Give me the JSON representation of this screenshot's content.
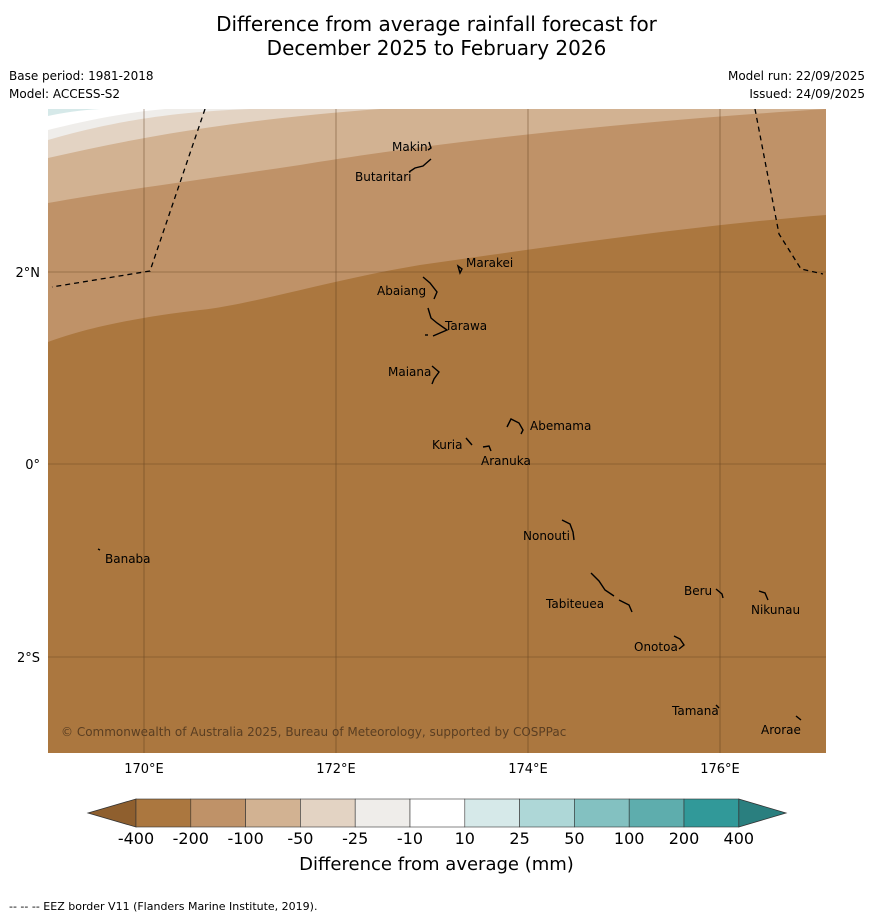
{
  "title": {
    "line1": "Difference from average rainfall forecast for",
    "line2": "December 2025 to February 2026"
  },
  "meta": {
    "base_period": "Base period: 1981-2018",
    "model": "Model: ACCESS-S2",
    "model_run": "Model run: 22/09/2025",
    "issued": "Issued: 24/09/2025"
  },
  "map": {
    "copyright": "© Commonwealth of Australia 2025, Bureau of Meteorology, supported by COSPPac",
    "lon_ticks": [
      "170°E",
      "172°E",
      "174°E",
      "176°E"
    ],
    "lat_ticks": [
      "2°N",
      "0°",
      "2°S"
    ],
    "islands": [
      {
        "name": "Makin"
      },
      {
        "name": "Butaritari"
      },
      {
        "name": "Marakei"
      },
      {
        "name": "Abaiang"
      },
      {
        "name": "Tarawa"
      },
      {
        "name": "Maiana"
      },
      {
        "name": "Abemama"
      },
      {
        "name": "Kuria"
      },
      {
        "name": "Aranuka"
      },
      {
        "name": "Nonouti"
      },
      {
        "name": "Banaba"
      },
      {
        "name": "Beru"
      },
      {
        "name": "Tabiteuea"
      },
      {
        "name": "Nikunau"
      },
      {
        "name": "Onotoa"
      },
      {
        "name": "Tamana"
      },
      {
        "name": "Arorae"
      }
    ],
    "eez_border_style": "dashed"
  },
  "colorbar": {
    "title": "Difference from average (mm)",
    "ticks": [
      "-400",
      "-200",
      "-100",
      "-50",
      "-25",
      "-10",
      "10",
      "25",
      "50",
      "100",
      "200",
      "400"
    ],
    "colors": [
      "#ab773f",
      "#bf9268",
      "#d2b292",
      "#e3d3c3",
      "#efedea",
      "#ffffff",
      "#d6e9e9",
      "#aed7d7",
      "#83c1c1",
      "#5eadad",
      "#319999"
    ],
    "extend_low_color": "#8f5f2e",
    "extend_high_color": "#2a7f7f"
  },
  "footnote": "--  --  -- EEZ border V11 (Flanders Marine Institute, 2019)."
}
